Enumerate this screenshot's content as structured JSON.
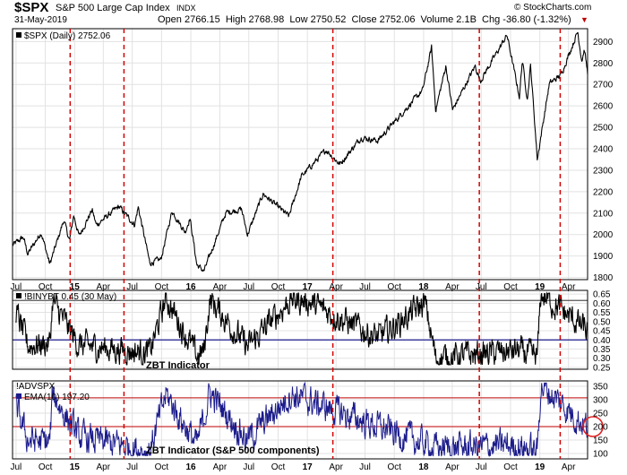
{
  "header": {
    "symbol": "$SPX",
    "name": "S&P 500 Large Cap Index",
    "exchange": "INDX",
    "date": "31-May-2019",
    "ohlc_text": "Open 2766.15  High 2768.98  Low 2750.52  Close 2752.06  Volume 2.1B  Chg -36.80 (-1.32%)",
    "down_marker": "▼",
    "watermark": "© StockCharts.com"
  },
  "colors": {
    "price_line": "#000000",
    "breadth_line": "#000000",
    "adv_line": "#1c1c8c",
    "level_line": "#1c1c8c",
    "top_level_line": "#555555",
    "red_level_line": "#cc3333",
    "marker": "#d40000",
    "circle": "#e02020"
  },
  "chart_data": [
    {
      "type": "line",
      "panel": "price",
      "legend": "$SPX (Daily) 2752.06",
      "y_range": [
        1790,
        2960
      ],
      "y_ticks": [
        1800,
        1900,
        2000,
        2100,
        2200,
        2300,
        2400,
        2500,
        2600,
        2700,
        2800,
        2900
      ],
      "x_range": [
        "2014-06-20",
        "2019-05-31"
      ],
      "x_ticks": [
        {
          "date": "2014-07-01",
          "label": "Jul"
        },
        {
          "date": "2014-10-01",
          "label": "Oct"
        },
        {
          "date": "2015-01-01",
          "label": "15"
        },
        {
          "date": "2015-04-01",
          "label": "Apr"
        },
        {
          "date": "2015-07-01",
          "label": "Jul"
        },
        {
          "date": "2015-10-01",
          "label": "Oct"
        },
        {
          "date": "2016-01-01",
          "label": "16"
        },
        {
          "date": "2016-04-01",
          "label": "Apr"
        },
        {
          "date": "2016-07-01",
          "label": "Jul"
        },
        {
          "date": "2016-10-01",
          "label": "Oct"
        },
        {
          "date": "2017-01-01",
          "label": "17"
        },
        {
          "date": "2017-04-01",
          "label": "Apr"
        },
        {
          "date": "2017-07-01",
          "label": "Jul"
        },
        {
          "date": "2017-10-01",
          "label": "Oct"
        },
        {
          "date": "2018-01-01",
          "label": "18"
        },
        {
          "date": "2018-04-01",
          "label": "Apr"
        },
        {
          "date": "2018-07-01",
          "label": "Jul"
        },
        {
          "date": "2018-10-01",
          "label": "Oct"
        },
        {
          "date": "2019-01-01",
          "label": "19"
        },
        {
          "date": "2019-04-01",
          "label": "Apr"
        }
      ],
      "series": [
        {
          "values": [
            [
              "2014-06-20",
              1950
            ],
            [
              "2014-07-24",
              1988
            ],
            [
              "2014-08-07",
              1910
            ],
            [
              "2014-09-18",
              2011
            ],
            [
              "2014-10-15",
              1862
            ],
            [
              "2014-11-28",
              2067
            ],
            [
              "2014-12-16",
              1972
            ],
            [
              "2014-12-29",
              2090
            ],
            [
              "2015-01-15",
              1992
            ],
            [
              "2015-02-25",
              2115
            ],
            [
              "2015-03-10",
              2044
            ],
            [
              "2015-05-20",
              2131
            ],
            [
              "2015-07-08",
              2046
            ],
            [
              "2015-07-20",
              2128
            ],
            [
              "2015-08-25",
              1867
            ],
            [
              "2015-09-29",
              1884
            ],
            [
              "2015-11-03",
              2110
            ],
            [
              "2015-12-14",
              2012
            ],
            [
              "2015-12-29",
              2078
            ],
            [
              "2016-01-20",
              1859
            ],
            [
              "2016-02-11",
              1829
            ],
            [
              "2016-04-20",
              2102
            ],
            [
              "2016-06-08",
              2119
            ],
            [
              "2016-06-27",
              2000
            ],
            [
              "2016-08-15",
              2190
            ],
            [
              "2016-11-04",
              2085
            ],
            [
              "2016-12-13",
              2271
            ],
            [
              "2017-03-01",
              2395
            ],
            [
              "2017-04-13",
              2328
            ],
            [
              "2017-06-19",
              2453
            ],
            [
              "2017-08-10",
              2438
            ],
            [
              "2017-10-31",
              2575
            ],
            [
              "2017-12-29",
              2673
            ],
            [
              "2018-01-26",
              2872
            ],
            [
              "2018-02-08",
              2581
            ],
            [
              "2018-03-12",
              2786
            ],
            [
              "2018-04-02",
              2581
            ],
            [
              "2018-06-12",
              2786
            ],
            [
              "2018-06-28",
              2716
            ],
            [
              "2018-09-20",
              2930
            ],
            [
              "2018-10-29",
              2641
            ],
            [
              "2018-11-07",
              2813
            ],
            [
              "2018-11-23",
              2632
            ],
            [
              "2018-12-03",
              2790
            ],
            [
              "2018-12-24",
              2351
            ],
            [
              "2019-01-31",
              2704
            ],
            [
              "2019-03-08",
              2743
            ],
            [
              "2019-04-30",
              2946
            ],
            [
              "2019-05-13",
              2812
            ],
            [
              "2019-05-21",
              2864
            ],
            [
              "2019-05-31",
              2752
            ]
          ]
        }
      ]
    },
    {
      "type": "line",
      "panel": "breadth",
      "legend": "!BINYBT 0.45 (30 May)",
      "annotation": "ZBT Indicator",
      "y_range": [
        0.24,
        0.67
      ],
      "y_ticks": [
        0.25,
        0.3,
        0.35,
        0.4,
        0.45,
        0.5,
        0.55,
        0.6,
        0.65
      ],
      "reference_levels": [
        0.615,
        0.4
      ],
      "series": [
        {
          "values": [
            [
              "2014-07-01",
              0.55
            ],
            [
              "2014-08-07",
              0.37
            ],
            [
              "2014-10-15",
              0.38
            ],
            [
              "2014-10-24",
              0.61
            ],
            [
              "2015-01-15",
              0.37
            ],
            [
              "2015-08-25",
              0.33
            ],
            [
              "2015-10-15",
              0.63
            ],
            [
              "2016-01-20",
              0.31
            ],
            [
              "2016-02-11",
              0.34
            ],
            [
              "2016-03-01",
              0.62
            ],
            [
              "2016-06-27",
              0.36
            ],
            [
              "2016-11-10",
              0.62
            ],
            [
              "2017-01-03",
              0.61
            ],
            [
              "2017-08-11",
              0.41
            ],
            [
              "2018-01-05",
              0.6
            ],
            [
              "2018-02-08",
              0.3
            ],
            [
              "2018-10-25",
              0.34
            ],
            [
              "2018-12-24",
              0.3
            ],
            [
              "2019-01-04",
              0.65
            ],
            [
              "2019-05-30",
              0.45
            ]
          ]
        }
      ]
    },
    {
      "type": "line",
      "panel": "advances",
      "legend_1": "!ADVSPX",
      "legend_2": "EMA(10) 197.20",
      "annotation": "ZBT Indicator (S&P 500 components)",
      "y_range": [
        80,
        370
      ],
      "y_ticks": [
        100,
        150,
        200,
        250,
        300,
        350
      ],
      "reference_levels": [
        307,
        200
      ],
      "highlight": {
        "date": "2019-05-31",
        "value": 200
      },
      "series": [
        {
          "values": [
            [
              "2014-07-01",
              270
            ],
            [
              "2014-08-07",
              150
            ],
            [
              "2014-10-15",
              140
            ],
            [
              "2014-10-24",
              320
            ],
            [
              "2015-01-15",
              160
            ],
            [
              "2015-08-25",
              110
            ],
            [
              "2015-10-15",
              320
            ],
            [
              "2016-01-20",
              130
            ],
            [
              "2016-03-01",
              325
            ],
            [
              "2016-06-27",
              150
            ],
            [
              "2016-11-10",
              320
            ],
            [
              "2018-02-08",
              120
            ],
            [
              "2018-10-25",
              130
            ],
            [
              "2018-12-24",
              105
            ],
            [
              "2019-01-04",
              355
            ],
            [
              "2019-05-31",
              197
            ]
          ]
        }
      ]
    }
  ],
  "signal_dates": [
    "2014-12-18",
    "2015-06-05",
    "2017-03-22",
    "2018-06-25",
    "2019-03-06"
  ]
}
